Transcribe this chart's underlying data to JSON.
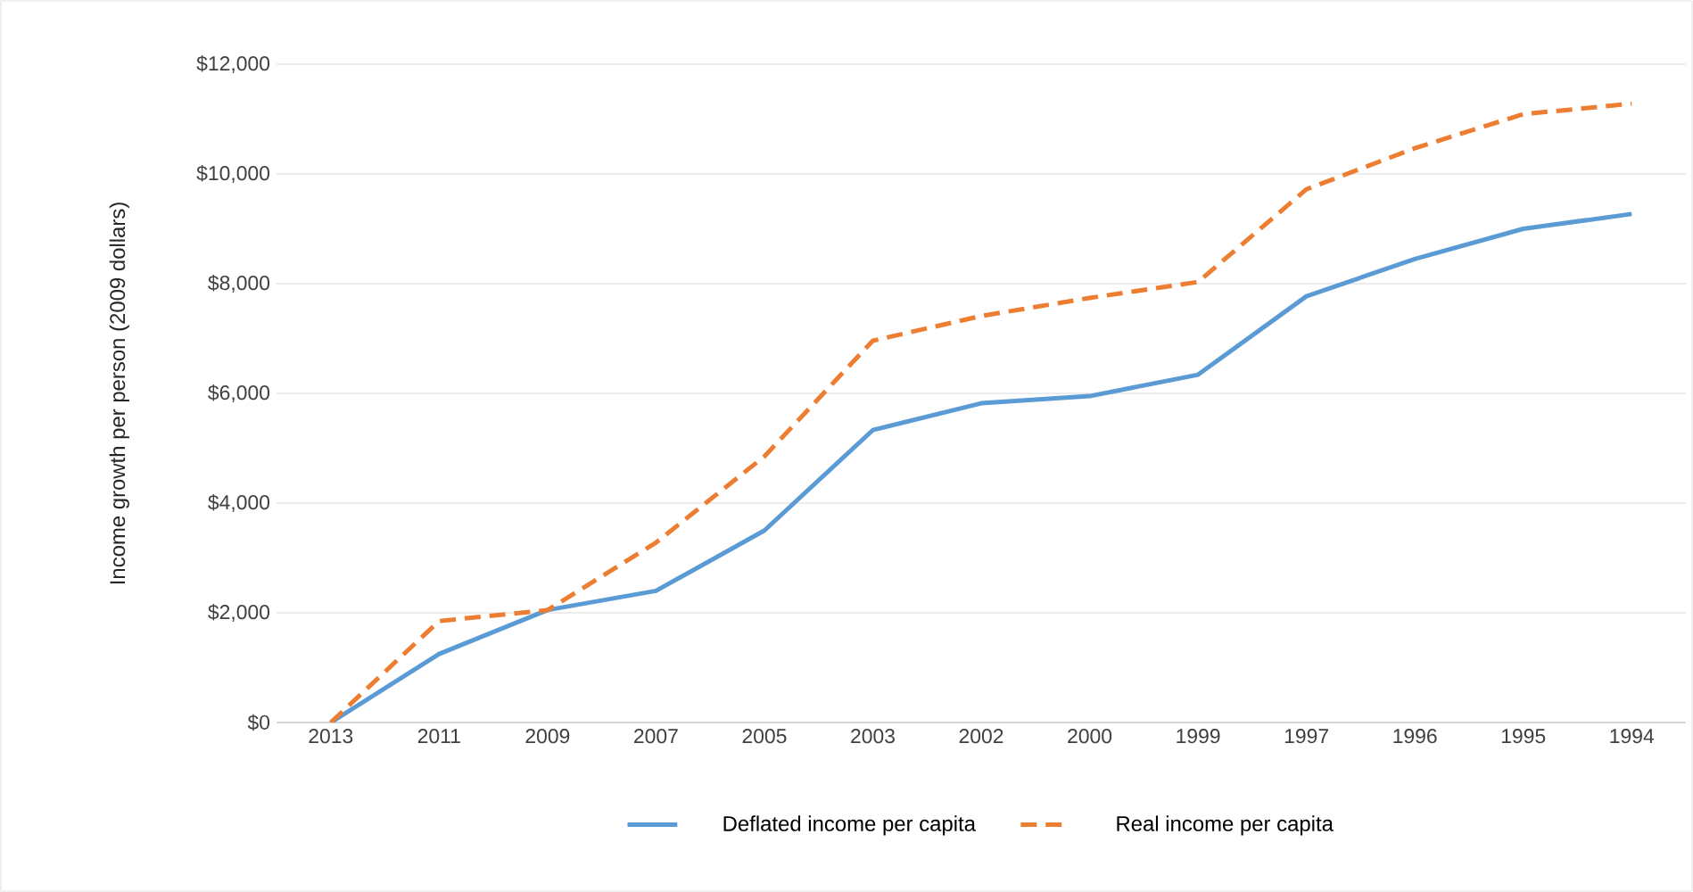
{
  "chart_data": {
    "type": "line",
    "ylabel": "Income growth per person (2009 dollars)",
    "categories": [
      "2013",
      "2011",
      "2009",
      "2007",
      "2005",
      "2003",
      "2002",
      "2000",
      "1999",
      "1997",
      "1996",
      "1995",
      "1994"
    ],
    "series": [
      {
        "name": "Deflated income per capita",
        "color": "#5b9bd5",
        "line_style": "solid",
        "values": [
          0,
          1250,
          2050,
          2400,
          3500,
          5330,
          5820,
          5950,
          6340,
          7770,
          8450,
          9000,
          9270
        ]
      },
      {
        "name": "Real income per capita",
        "color": "#ed7d31",
        "line_style": "dashed",
        "values": [
          0,
          1850,
          2050,
          3280,
          4850,
          6960,
          7410,
          7740,
          8030,
          9720,
          10470,
          11090,
          11280
        ]
      }
    ],
    "ylim": [
      0,
      12000
    ],
    "yticks": [
      {
        "value": 0,
        "label": "$0"
      },
      {
        "value": 2000,
        "label": "$2,000"
      },
      {
        "value": 4000,
        "label": "$4,000"
      },
      {
        "value": 6000,
        "label": "$6,000"
      },
      {
        "value": 8000,
        "label": "$8,000"
      },
      {
        "value": 10000,
        "label": "$10,000"
      },
      {
        "value": 12000,
        "label": "$12,000"
      }
    ],
    "grid": "y",
    "legend": "bottom",
    "marker": "none"
  }
}
